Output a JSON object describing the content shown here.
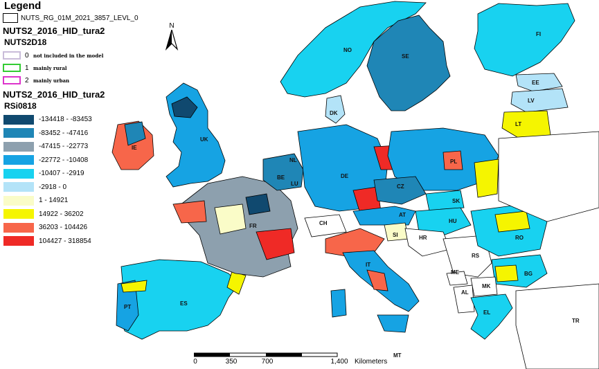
{
  "legend": {
    "title": "Legend",
    "boundary_layer": "NUTS_RG_01M_2021_3857_LEVL_0",
    "layer1_title": "NUTS2_2016_HID_tura2",
    "field1_title": "NUTS2D18",
    "classes": [
      {
        "value": "0",
        "label": "not included in the model",
        "border": "#c9bcd9"
      },
      {
        "value": "1",
        "label": "mainly rural",
        "border": "#33cc33"
      },
      {
        "value": "2",
        "label": "mainly urban",
        "border": "#dd33cc"
      }
    ],
    "layer2_title": "NUTS2_2016_HID_tura2",
    "field2_title": "RSi0818",
    "ranges": [
      {
        "label": "-134418 - -83453",
        "color": "#10496f"
      },
      {
        "label": "-83452 - -47416",
        "color": "#1f86b6"
      },
      {
        "label": "-47415 - -22773",
        "color": "#8da0ae"
      },
      {
        "label": "-22772 - -10408",
        "color": "#16a3e3"
      },
      {
        "label": "-10407 - -2919",
        "color": "#18d2f0"
      },
      {
        "label": "-2918 - 0",
        "color": "#b3e3f8"
      },
      {
        "label": "1 - 14921",
        "color": "#fafcc8"
      },
      {
        "label": "14922 - 36202",
        "color": "#f5f500"
      },
      {
        "label": "36203 - 104426",
        "color": "#f7664a"
      },
      {
        "label": "104427 - 318854",
        "color": "#ef2a26"
      }
    ]
  },
  "north_arrow": {
    "label": "N",
    "icon": "north-arrow-icon"
  },
  "country_labels": [
    "FI",
    "NO",
    "SE",
    "EE",
    "LV",
    "DK",
    "LT",
    "IE",
    "UK",
    "NL",
    "PL",
    "BE",
    "DE",
    "CZ",
    "LU",
    "SK",
    "FR",
    "CH",
    "AT",
    "HU",
    "RO",
    "SI",
    "HR",
    "RS",
    "IT",
    "ME",
    "BG",
    "MK",
    "AL",
    "PT",
    "ES",
    "EL",
    "TR",
    "MT"
  ],
  "scalebar": {
    "ticks": [
      "0",
      "350",
      "700",
      "1,400"
    ],
    "unit": "Kilometers"
  }
}
